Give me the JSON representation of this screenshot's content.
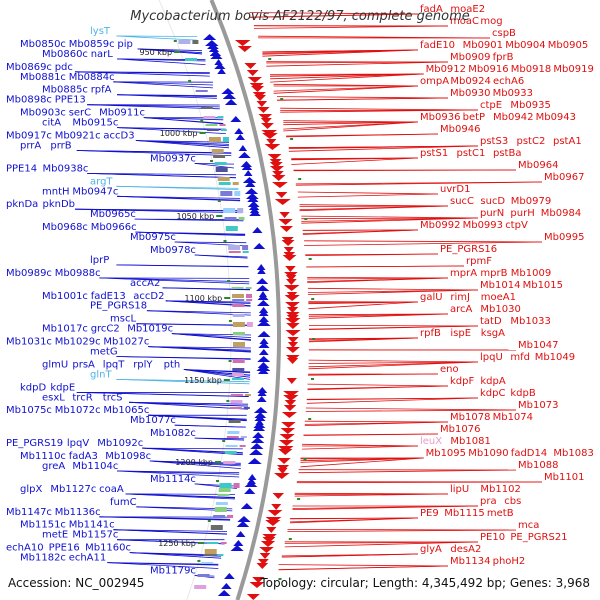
{
  "title": "Mycobacterium bovis AF2122/97, complete genome",
  "accession": "Accession: NC_002945",
  "topology": "Topology: circular; Length: 4,345,492 bp; Genes: 3,968",
  "colors": {
    "left_genes": "#1010d0",
    "right_genes": "#e01010",
    "rna_genes": "#4fb4e6",
    "pink_genes": "#e4a0c8",
    "backbone": "#9a9a9a",
    "tick_marker": "#2a8a2a"
  },
  "tick_labels": [
    "950 kbp",
    "1000 kbp",
    "1050 kbp",
    "1100 kbp",
    "1150 kbp",
    "1200 kbp",
    "1250 kbp"
  ],
  "left_labels": [
    {
      "lines": [
        "lysT"
      ],
      "type": "rna"
    },
    {
      "lines": [
        "Mb0850c",
        "Mb0859c",
        "pip"
      ]
    },
    {
      "lines": [
        "Mb0860c",
        "narL"
      ]
    },
    {
      "lines": [
        "Mb0869c",
        "pdc"
      ]
    },
    {
      "lines": [
        "Mb0881c",
        "Mb0884c"
      ]
    },
    {
      "lines": [
        "Mb0885c",
        "rpfA"
      ]
    },
    {
      "lines": [
        "Mb0898c",
        "PPE13"
      ]
    },
    {
      "lines": [
        "Mb0903c",
        "serC",
        "Mb0911c"
      ]
    },
    {
      "lines": [
        "citA",
        "Mb0915c"
      ]
    },
    {
      "lines": [
        "Mb0917c",
        "Mb0921c",
        "accD3"
      ]
    },
    {
      "lines": [
        "prrA",
        "prrB"
      ]
    },
    {
      "lines": [
        "Mb0937c"
      ]
    },
    {
      "lines": [
        "PPE14",
        "Mb0938c"
      ]
    },
    {
      "lines": [
        "argT"
      ],
      "type": "rna"
    },
    {
      "lines": [
        "mntH",
        "Mb0947c"
      ]
    },
    {
      "lines": [
        "pknDa",
        "pknDb"
      ]
    },
    {
      "lines": [
        "Mb0965c"
      ]
    },
    {
      "lines": [
        "Mb0968c",
        "Mb0966c"
      ]
    },
    {
      "lines": [
        "Mb0975c"
      ]
    },
    {
      "lines": [
        "Mb0978c"
      ]
    },
    {
      "lines": [
        "lprP"
      ]
    },
    {
      "lines": [
        "Mb0989c",
        "Mb0988c"
      ]
    },
    {
      "lines": [
        "accA2"
      ]
    },
    {
      "lines": [
        "Mb1001c",
        "fadE13",
        "accD2"
      ]
    },
    {
      "lines": [
        "PE_PGRS18"
      ]
    },
    {
      "lines": [
        "mscL"
      ]
    },
    {
      "lines": [
        "Mb1017c",
        "grcC2",
        "Mb1019c"
      ]
    },
    {
      "lines": [
        "Mb1031c",
        "Mb1029c",
        "Mb1027c"
      ]
    },
    {
      "lines": [
        "metG"
      ]
    },
    {
      "lines": [
        "glmU",
        "prsA",
        "lpqT",
        "rplY",
        "pth"
      ]
    },
    {
      "lines": [
        "glnT"
      ],
      "type": "rna"
    },
    {
      "lines": [
        "kdpD",
        "kdpE"
      ]
    },
    {
      "lines": [
        "esxL",
        "trcR",
        "trcS"
      ]
    },
    {
      "lines": [
        "Mb1075c",
        "Mb1072c",
        "Mb1065c"
      ]
    },
    {
      "lines": [
        "Mb1077c"
      ]
    },
    {
      "lines": [
        "Mb1082c"
      ]
    },
    {
      "lines": [
        "PE_PGRS19",
        "lpqV",
        "Mb1092c"
      ]
    },
    {
      "lines": [
        "Mb1110c",
        "fadA3",
        "Mb1098c"
      ]
    },
    {
      "lines": [
        "greA",
        "Mb1104c"
      ]
    },
    {
      "lines": [
        "Mb1114c"
      ]
    },
    {
      "lines": [
        "glpX",
        "Mb1127c",
        "coaA"
      ]
    },
    {
      "lines": [
        "fumC"
      ]
    },
    {
      "lines": [
        "Mb1147c",
        "Mb1136c"
      ]
    },
    {
      "lines": [
        "Mb1151c",
        "Mb1141c"
      ]
    },
    {
      "lines": [
        "metE",
        "Mb1157c"
      ]
    },
    {
      "lines": [
        "echA10",
        "PPE16",
        "Mb1160c"
      ]
    },
    {
      "lines": [
        "Mb1182c",
        "echA11"
      ]
    },
    {
      "lines": [
        "Mb1179c"
      ]
    }
  ],
  "right_labels": [
    {
      "lines": [
        "fadA",
        "moaE2"
      ]
    },
    {
      "lines": [
        "moaC",
        "mog"
      ]
    },
    {
      "lines": [
        "cspB"
      ]
    },
    {
      "lines": [
        "fadE10",
        "Mb0901",
        "Mb0904",
        "Mb0905"
      ]
    },
    {
      "lines": [
        "Mb0909",
        "fprB"
      ]
    },
    {
      "lines": [
        "Mb0912",
        "Mb0916",
        "Mb0918",
        "Mb0919"
      ]
    },
    {
      "lines": [
        "ompA",
        "Mb0924",
        "echA6"
      ]
    },
    {
      "lines": [
        "Mb0930",
        "Mb0933"
      ]
    },
    {
      "lines": [
        "ctpE",
        "Mb0935"
      ]
    },
    {
      "lines": [
        "Mb0936",
        "betP",
        "Mb0942",
        "Mb0943"
      ]
    },
    {
      "lines": [
        "Mb0946"
      ]
    },
    {
      "lines": [
        "pstS3",
        "pstC2",
        "pstA1"
      ]
    },
    {
      "lines": [
        "pstS1",
        "pstC1",
        "pstBa"
      ]
    },
    {
      "lines": [
        "Mb0964"
      ]
    },
    {
      "lines": [
        "Mb0967"
      ]
    },
    {
      "lines": [
        "uvrD1"
      ]
    },
    {
      "lines": [
        "sucC",
        "sucD",
        "Mb0979"
      ]
    },
    {
      "lines": [
        "purN",
        "purH",
        "Mb0984"
      ]
    },
    {
      "lines": [
        "Mb0992",
        "Mb0993",
        "ctpV"
      ]
    },
    {
      "lines": [
        "Mb0995"
      ]
    },
    {
      "lines": [
        "PE_PGRS16"
      ]
    },
    {
      "lines": [
        "rpmF"
      ]
    },
    {
      "lines": [
        "mprA",
        "mprB",
        "Mb1009"
      ]
    },
    {
      "lines": [
        "Mb1014",
        "Mb1015"
      ]
    },
    {
      "lines": [
        "galU",
        "rimJ",
        "moeA1"
      ]
    },
    {
      "lines": [
        "arcA",
        "Mb1030"
      ]
    },
    {
      "lines": [
        "tatD",
        "Mb1033"
      ]
    },
    {
      "lines": [
        "rpfB",
        "ispE",
        "ksgA"
      ]
    },
    {
      "lines": [
        "Mb1047"
      ]
    },
    {
      "lines": [
        "lpqU",
        "mfd",
        "Mb1049"
      ]
    },
    {
      "lines": [
        "eno"
      ]
    },
    {
      "lines": [
        "kdpF",
        "kdpA"
      ]
    },
    {
      "lines": [
        "kdpC",
        "kdpB"
      ]
    },
    {
      "lines": [
        "Mb1073"
      ]
    },
    {
      "lines": [
        "Mb1078",
        "Mb1074"
      ]
    },
    {
      "lines": [
        "Mb1076"
      ]
    },
    {
      "lines": [
        "leuX",
        "Mb1081"
      ],
      "pink_first": true
    },
    {
      "lines": [
        "Mb1095",
        "Mb1090",
        "fadD14",
        "Mb1083"
      ]
    },
    {
      "lines": [
        "Mb1088"
      ]
    },
    {
      "lines": [
        "Mb1101"
      ]
    },
    {
      "lines": [
        "lipU",
        "Mb1102"
      ]
    },
    {
      "lines": [
        "pra",
        "cbs"
      ]
    },
    {
      "lines": [
        "PE9",
        "Mb1115",
        "metB"
      ]
    },
    {
      "lines": [
        "mca"
      ]
    },
    {
      "lines": [
        "PE10",
        "PE_PGRS21"
      ]
    },
    {
      "lines": [
        "glyA",
        "desA2"
      ]
    },
    {
      "lines": [
        "Mb1134",
        "phoH2"
      ]
    }
  ]
}
